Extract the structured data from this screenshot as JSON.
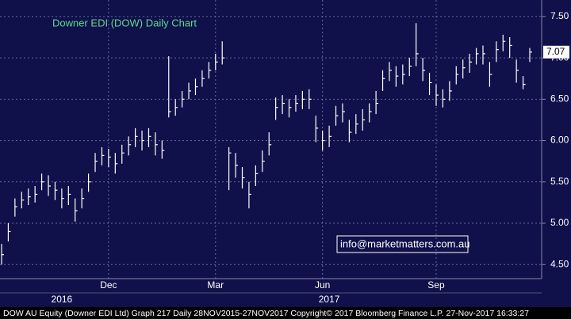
{
  "chart_data": {
    "type": "ohlc",
    "title": "Downer EDI (DOW) Daily Chart",
    "categories": [
      null,
      null,
      null,
      null,
      null,
      null,
      null,
      null,
      null,
      null,
      null,
      null,
      null,
      null,
      null,
      null,
      "Dec",
      null,
      null,
      null,
      null,
      null,
      null,
      null,
      null,
      null,
      null,
      null,
      null,
      null,
      null,
      null,
      "Mar",
      null,
      null,
      null,
      null,
      null,
      null,
      null,
      null,
      null,
      null,
      null,
      null,
      null,
      null,
      null,
      "Jun",
      null,
      null,
      null,
      null,
      null,
      null,
      null,
      null,
      null,
      null,
      null,
      null,
      null,
      null,
      null,
      null,
      "Sep",
      null,
      null,
      null,
      null,
      null,
      null,
      null,
      null,
      null,
      null,
      null,
      null,
      null,
      null
    ],
    "years": [
      null,
      null,
      null,
      null,
      null,
      null,
      null,
      null,
      null,
      "2016",
      null,
      null,
      null,
      null,
      null,
      null,
      null,
      null,
      null,
      null,
      null,
      null,
      null,
      null,
      null,
      null,
      null,
      null,
      null,
      null,
      null,
      null,
      null,
      null,
      null,
      null,
      null,
      null,
      null,
      null,
      null,
      null,
      null,
      null,
      null,
      null,
      null,
      null,
      null,
      "2017",
      null,
      null,
      null,
      null,
      null,
      null,
      null,
      null,
      null,
      null,
      null,
      null,
      null,
      null,
      null,
      null,
      null,
      null,
      null,
      null,
      null,
      null,
      null,
      null,
      null,
      null,
      null,
      null,
      null,
      null
    ],
    "high": [
      4.75,
      5.0,
      5.3,
      5.38,
      5.42,
      5.45,
      5.6,
      5.58,
      5.5,
      5.42,
      5.45,
      5.3,
      5.42,
      5.6,
      5.85,
      5.92,
      5.9,
      5.85,
      5.95,
      6.05,
      6.15,
      6.12,
      6.15,
      6.1,
      6.0,
      7.02,
      6.5,
      6.6,
      6.7,
      6.75,
      6.85,
      6.95,
      7.05,
      7.2,
      5.92,
      5.85,
      5.68,
      5.5,
      5.7,
      5.88,
      6.1,
      6.52,
      6.55,
      6.5,
      6.55,
      6.6,
      6.62,
      6.3,
      6.12,
      6.18,
      6.42,
      6.45,
      6.25,
      6.32,
      6.38,
      6.45,
      6.6,
      6.85,
      6.95,
      6.9,
      6.92,
      7.0,
      7.42,
      7.0,
      6.82,
      6.68,
      6.62,
      6.72,
      6.9,
      6.98,
      7.05,
      7.12,
      7.15,
      6.95,
      7.2,
      7.28,
      7.25,
      6.98,
      6.78,
      7.12
    ],
    "low": [
      4.5,
      4.78,
      5.08,
      5.18,
      5.22,
      5.25,
      5.4,
      5.33,
      5.28,
      5.18,
      5.22,
      5.02,
      5.18,
      5.38,
      5.62,
      5.7,
      5.68,
      5.6,
      5.72,
      5.82,
      5.92,
      5.88,
      5.92,
      5.82,
      5.78,
      6.28,
      6.3,
      6.4,
      6.5,
      6.55,
      6.65,
      6.75,
      6.85,
      6.92,
      5.4,
      5.55,
      5.42,
      5.18,
      5.45,
      5.62,
      5.82,
      6.25,
      6.32,
      6.28,
      6.35,
      6.38,
      6.38,
      5.98,
      5.88,
      5.92,
      6.18,
      6.22,
      5.98,
      6.08,
      6.12,
      6.22,
      6.32,
      6.6,
      6.72,
      6.65,
      6.68,
      6.78,
      6.9,
      6.72,
      6.55,
      6.42,
      6.4,
      6.48,
      6.68,
      6.75,
      6.82,
      6.92,
      6.92,
      6.65,
      6.95,
      7.08,
      7.0,
      6.7,
      6.62,
      6.95
    ],
    "close": [
      4.62,
      4.9,
      5.2,
      5.28,
      5.32,
      5.35,
      5.5,
      5.45,
      5.4,
      5.3,
      5.35,
      5.15,
      5.3,
      5.5,
      5.75,
      5.82,
      5.8,
      5.72,
      5.85,
      5.95,
      6.05,
      6.0,
      6.05,
      5.95,
      5.88,
      6.35,
      6.4,
      6.5,
      6.6,
      6.65,
      6.75,
      6.85,
      6.95,
      7.0,
      5.85,
      5.7,
      5.55,
      5.35,
      5.6,
      5.75,
      5.95,
      6.4,
      6.45,
      6.4,
      6.45,
      6.5,
      6.5,
      6.15,
      6.0,
      6.05,
      6.3,
      6.35,
      6.1,
      6.2,
      6.25,
      6.35,
      6.45,
      6.75,
      6.85,
      6.78,
      6.8,
      6.9,
      7.05,
      6.85,
      6.7,
      6.55,
      6.5,
      6.6,
      6.8,
      6.88,
      6.95,
      7.05,
      7.05,
      6.8,
      7.1,
      7.2,
      7.15,
      6.85,
      6.68,
      7.07
    ],
    "color": "#ffffff",
    "ylim": [
      4.33,
      7.7
    ],
    "yticks": [
      {
        "value": 4.5,
        "label": "4.50"
      },
      {
        "value": 5,
        "label": "5.00"
      },
      {
        "value": 5.5,
        "label": "5.50"
      },
      {
        "value": 6,
        "label": "6.00"
      },
      {
        "value": 6.5,
        "label": "6.50"
      },
      {
        "value": 7,
        "label": "7.00"
      },
      {
        "value": 7.5,
        "label": "7.50"
      }
    ],
    "grid": true,
    "annotation": "info@marketmatters.com.au",
    "footer": "DOW AU Equity (Downer EDI Ltd) Graph 217  Daily 28NOV2015-27NOV2017 Copyright© 2017 Bloomberg Finance L.P.  27-Nov-2017 16:33:27"
  }
}
